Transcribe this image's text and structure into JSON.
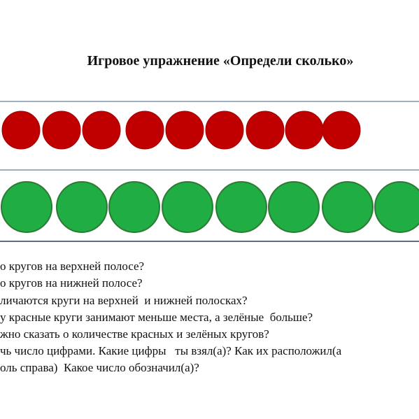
{
  "header": {
    "title": "Игровое упражнение «Определи сколько»"
  },
  "questions": [
    "о кругов на верхней полосе?",
    "о кругов на нижней полосе?",
    "личаются круги на верхней  и нижней полосках?",
    "у красные круги занимают меньше места, а зелёные  больше?",
    "жно сказать о количестве красных и зелёных кругов?",
    "чь число цифрами. Какие цифры   ты взял(а)? Как их расположил(а",
    "оль справа)  Какое число обозначил(а)?"
  ]
}
